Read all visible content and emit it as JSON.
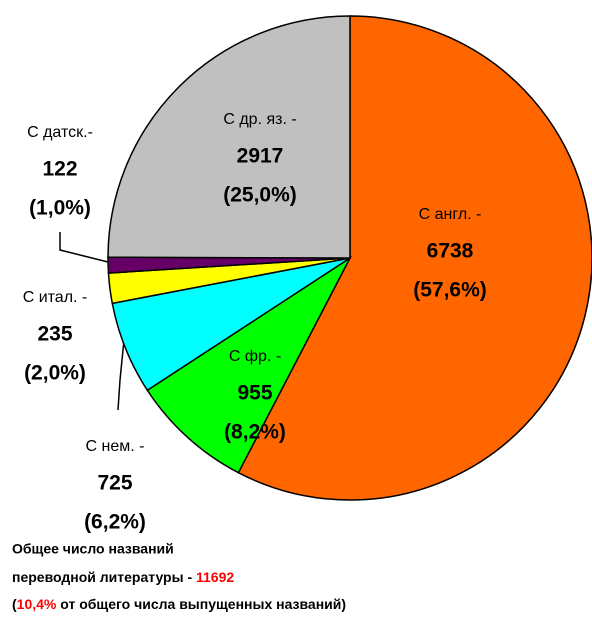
{
  "chart_data": {
    "type": "pie",
    "categories": [
      "С англ. -",
      "С фр. -",
      "С нем. -",
      "С итал. -",
      "С датск.-",
      "С др. яз. -"
    ],
    "values": [
      6738,
      955,
      725,
      235,
      122,
      2917
    ],
    "percent_labels": [
      "(57,6%)",
      "(8,2%)",
      "(6,2%)",
      "(2,0%)",
      "(1,0%)",
      "(25,0%)"
    ],
    "colors": [
      "#ff6600",
      "#00ff00",
      "#00ffff",
      "#ffff00",
      "#660066",
      "#c0c0c0"
    ],
    "note": {
      "line1": "Общее число названий",
      "line2": "переводной литературы -",
      "total": 11692,
      "open": "(",
      "share": "10,4%",
      "rest": "от общего числа выпущенных названий)"
    }
  }
}
